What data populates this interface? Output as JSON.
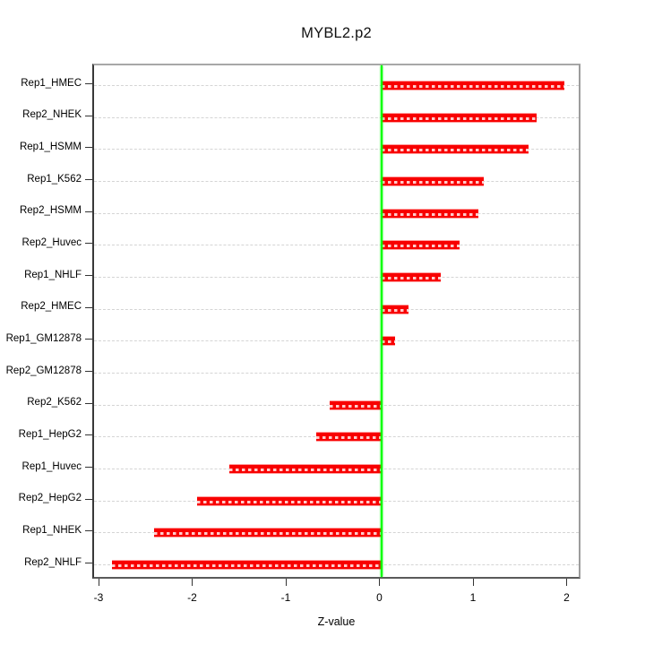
{
  "chart_data": {
    "type": "bar",
    "orientation": "horizontal",
    "title": "MYBL2.p2",
    "xlabel": "Z-value",
    "categories": [
      "Rep1_HMEC",
      "Rep2_NHEK",
      "Rep1_HSMM",
      "Rep1_K562",
      "Rep2_HSMM",
      "Rep2_Huvec",
      "Rep1_NHLF",
      "Rep2_HMEC",
      "Rep1_GM12878",
      "Rep2_GM12878",
      "Rep2_K562",
      "Rep1_HepG2",
      "Rep1_Huvec",
      "Rep2_HepG2",
      "Rep1_NHEK",
      "Rep2_NHLF"
    ],
    "values": [
      1.96,
      1.66,
      1.57,
      1.1,
      1.04,
      0.84,
      0.64,
      0.29,
      0.15,
      0,
      -0.55,
      -0.69,
      -1.62,
      -1.97,
      -2.43,
      -2.88
    ],
    "xlim": [
      -3,
      2
    ],
    "x_ticks": [
      "-3",
      "-2",
      "-1",
      "0",
      "1",
      "2"
    ],
    "x_tick_values": [
      -3,
      -2,
      -1,
      0,
      1,
      2
    ],
    "grid": "horizontal-dashed",
    "legend": "none",
    "colors": {
      "bar": "#f80000",
      "bar_edge": "#ff9c9c",
      "bar_dash_overlay": "rgba(255,255,255,0.8)",
      "zero_line": "#00ff00",
      "gridline": "#d4d4d4",
      "axis_dark": "#383838",
      "box_gray": "#a8a8a8"
    }
  }
}
